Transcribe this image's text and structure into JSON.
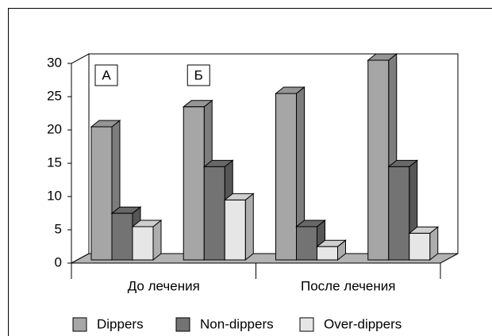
{
  "chart_data": {
    "type": "bar3d",
    "categories": [
      null,
      null,
      null,
      null
    ],
    "category_groups": [
      "До лечения",
      "После лечения"
    ],
    "annotations": [
      "А",
      "Б"
    ],
    "series": [
      {
        "name": "Dippers",
        "color": "#a6a6a6",
        "values": [
          20,
          23,
          25,
          30
        ]
      },
      {
        "name": "Non-dippers",
        "color": "#737373",
        "values": [
          7,
          14,
          5,
          14
        ]
      },
      {
        "name": "Over-dippers",
        "color": "#e6e6e6",
        "values": [
          5,
          9,
          2,
          4
        ]
      }
    ],
    "ylim": [
      0,
      30
    ],
    "yticks": [
      0,
      5,
      10,
      15,
      20,
      25,
      30
    ],
    "grid": false,
    "legend": "bottom"
  }
}
